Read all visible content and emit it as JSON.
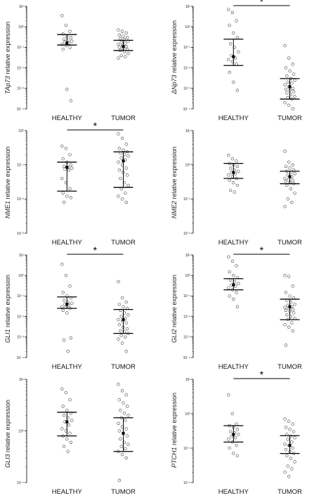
{
  "chart_data": [
    {
      "type": "scatter",
      "panel": "top-left",
      "ylabel_gene": "TAp73",
      "ylabel_rest": " relative expression",
      "yscale": "log",
      "ylim": [
        0.0001,
        10
      ],
      "yticks": [
        "10⁻⁴",
        "10⁻³",
        "10⁻²",
        "10⁻¹",
        "10⁰",
        "10¹"
      ],
      "categories": [
        "HEALTHY",
        "TUMOR"
      ],
      "significance": "",
      "groups": [
        {
          "name": "HEALTHY",
          "mean": 0.16,
          "err_low": 0.13,
          "err_high": 0.42,
          "points": [
            3.5,
            1.2,
            0.6,
            0.45,
            0.35,
            0.3,
            0.25,
            0.22,
            0.2,
            0.18,
            0.16,
            0.14,
            0.12,
            0.1,
            0.08,
            0.0009,
            0.00025
          ]
        },
        {
          "name": "TUMOR",
          "mean": 0.11,
          "err_low": 0.07,
          "err_high": 0.22,
          "points": [
            0.7,
            0.6,
            0.5,
            0.4,
            0.35,
            0.3,
            0.27,
            0.24,
            0.2,
            0.18,
            0.16,
            0.14,
            0.12,
            0.11,
            0.1,
            0.09,
            0.08,
            0.07,
            0.06,
            0.05,
            0.04,
            0.035,
            0.03
          ]
        }
      ]
    },
    {
      "type": "scatter",
      "panel": "top-right",
      "ylabel_gene": "ΔNp73",
      "ylabel_rest": " relative expression",
      "yscale": "log",
      "ylim": [
        0.0001,
        10
      ],
      "yticks": [
        "10⁻⁴",
        "10⁻³",
        "10⁻²",
        "10⁻¹",
        "10⁰",
        "10¹"
      ],
      "categories": [
        "HEALTHY",
        "TUMOR"
      ],
      "significance": "*",
      "groups": [
        {
          "name": "HEALTHY",
          "mean": 0.035,
          "err_low": 0.013,
          "err_high": 0.25,
          "points": [
            7,
            5,
            2,
            1.2,
            0.5,
            0.3,
            0.15,
            0.1,
            0.06,
            0.04,
            0.03,
            0.025,
            0.02,
            0.015,
            0.006,
            0.002,
            0.0008
          ]
        },
        {
          "name": "TUMOR",
          "mean": 0.0012,
          "err_low": 0.0003,
          "err_high": 0.003,
          "points": [
            0.12,
            0.03,
            0.015,
            0.01,
            0.007,
            0.005,
            0.004,
            0.003,
            0.0025,
            0.002,
            0.0018,
            0.0015,
            0.0012,
            0.001,
            0.0009,
            0.0008,
            0.0007,
            0.0006,
            0.0005,
            0.0004,
            0.00035,
            0.0003,
            0.0002,
            0.00015,
            0.0001
          ]
        }
      ]
    },
    {
      "type": "scatter",
      "panel": "row2-left",
      "ylabel_gene": "NME1",
      "ylabel_rest": " relative expression",
      "yscale": "log",
      "ylim": [
        0.001,
        1
      ],
      "yticks": [
        "10⁻³",
        "10⁻²",
        "10⁻¹",
        "10⁰"
      ],
      "categories": [
        "HEALTHY",
        "TUMOR"
      ],
      "significance": "*",
      "groups": [
        {
          "name": "HEALTHY",
          "mean": 0.085,
          "err_low": 0.017,
          "err_high": 0.12,
          "points": [
            0.35,
            0.3,
            0.2,
            0.15,
            0.12,
            0.1,
            0.09,
            0.085,
            0.08,
            0.075,
            0.07,
            0.04,
            0.03,
            0.02,
            0.015,
            0.012,
            0.011,
            0.008
          ]
        },
        {
          "name": "TUMOR",
          "mean": 0.13,
          "err_low": 0.022,
          "err_high": 0.24,
          "points": [
            0.8,
            0.6,
            0.4,
            0.3,
            0.27,
            0.24,
            0.22,
            0.2,
            0.18,
            0.16,
            0.14,
            0.12,
            0.1,
            0.08,
            0.07,
            0.06,
            0.05,
            0.04,
            0.03,
            0.025,
            0.02,
            0.015,
            0.012,
            0.01,
            0.008
          ]
        }
      ]
    },
    {
      "type": "scatter",
      "panel": "row2-right",
      "ylabel_gene": "NME2",
      "ylabel_rest": " relative expression",
      "yscale": "log",
      "ylim": [
        0.01,
        10
      ],
      "yticks": [
        "10⁻²",
        "10⁻¹",
        "10⁰",
        "10¹"
      ],
      "categories": [
        "HEALTHY",
        "TUMOR"
      ],
      "significance": "",
      "groups": [
        {
          "name": "HEALTHY",
          "mean": 0.6,
          "err_low": 0.4,
          "err_high": 1.1,
          "points": [
            1.9,
            1.5,
            1.3,
            1.1,
            1.0,
            0.9,
            0.8,
            0.7,
            0.65,
            0.6,
            0.55,
            0.5,
            0.45,
            0.4,
            0.35,
            0.3,
            0.25,
            0.18,
            0.16
          ]
        },
        {
          "name": "TUMOR",
          "mean": 0.45,
          "err_low": 0.28,
          "err_high": 0.65,
          "points": [
            2.5,
            1.2,
            1.0,
            0.9,
            0.8,
            0.7,
            0.65,
            0.6,
            0.55,
            0.5,
            0.45,
            0.4,
            0.38,
            0.35,
            0.33,
            0.3,
            0.28,
            0.25,
            0.2,
            0.15,
            0.1,
            0.08,
            0.06
          ]
        }
      ]
    },
    {
      "type": "scatter",
      "panel": "row3-left",
      "ylabel_gene": "GLI1",
      "ylabel_rest": " relative expression",
      "yscale": "log",
      "ylim": [
        0.0001,
        10
      ],
      "yticks": [
        "10⁻⁴",
        "10⁻³",
        "10⁻²",
        "10⁻¹",
        "10⁰",
        "10¹"
      ],
      "categories": [
        "HEALTHY",
        "TUMOR"
      ],
      "significance": "*",
      "groups": [
        {
          "name": "HEALTHY",
          "mean": 0.04,
          "err_low": 0.025,
          "err_high": 0.09,
          "points": [
            3.5,
            1.0,
            0.3,
            0.15,
            0.1,
            0.08,
            0.06,
            0.05,
            0.045,
            0.04,
            0.035,
            0.03,
            0.028,
            0.025,
            0.02,
            0.015,
            0.0009,
            0.0007,
            0.0002
          ]
        },
        {
          "name": "TUMOR",
          "mean": 0.007,
          "err_low": 0.0015,
          "err_high": 0.022,
          "points": [
            0.5,
            0.08,
            0.05,
            0.04,
            0.03,
            0.025,
            0.02,
            0.015,
            0.012,
            0.01,
            0.008,
            0.007,
            0.006,
            0.005,
            0.004,
            0.003,
            0.0025,
            0.002,
            0.0018,
            0.0015,
            0.0012,
            0.001,
            0.0008,
            0.0005,
            0.0002
          ]
        }
      ]
    },
    {
      "type": "scatter",
      "panel": "row3-right",
      "ylabel_gene": "GLI2",
      "ylabel_rest": " relative expression",
      "yscale": "log",
      "ylim": [
        0.0001,
        10
      ],
      "yticks": [
        "10⁻⁴",
        "10⁻³",
        "10⁻²",
        "10⁻¹",
        "10⁰",
        "10¹"
      ],
      "categories": [
        "HEALTHY",
        "TUMOR"
      ],
      "significance": "*",
      "groups": [
        {
          "name": "HEALTHY",
          "mean": 0.35,
          "err_low": 0.2,
          "err_high": 0.7,
          "points": [
            8,
            5,
            3,
            1.5,
            1.0,
            0.8,
            0.6,
            0.5,
            0.4,
            0.35,
            0.3,
            0.25,
            0.2,
            0.15,
            0.1,
            0.07,
            0.03
          ]
        },
        {
          "name": "TUMOR",
          "mean": 0.03,
          "err_low": 0.007,
          "err_high": 0.07,
          "points": [
            1.0,
            0.9,
            0.3,
            0.15,
            0.1,
            0.08,
            0.06,
            0.05,
            0.04,
            0.035,
            0.03,
            0.028,
            0.025,
            0.022,
            0.02,
            0.018,
            0.015,
            0.012,
            0.01,
            0.008,
            0.007,
            0.005,
            0.004,
            0.003,
            0.002,
            0.0004
          ]
        }
      ]
    },
    {
      "type": "scatter",
      "panel": "bottom-left",
      "ylabel_gene": "GLI3",
      "ylabel_rest": " relative expression",
      "yscale": "log",
      "ylim": [
        0.1,
        10
      ],
      "yticks": [
        "10⁻¹",
        "10⁰",
        "10¹"
      ],
      "categories": [
        "HEALTHY",
        "TUMOR"
      ],
      "significance": "",
      "groups": [
        {
          "name": "HEALTHY",
          "mean": 1.5,
          "err_low": 0.8,
          "err_high": 2.3,
          "points": [
            6.5,
            5.5,
            4,
            3,
            2.5,
            2.2,
            2.0,
            1.8,
            1.6,
            1.5,
            1.3,
            1.1,
            1.0,
            0.9,
            0.8,
            0.7,
            0.6,
            0.5,
            0.4
          ]
        },
        {
          "name": "TUMOR",
          "mean": 0.9,
          "err_low": 0.4,
          "err_high": 1.8,
          "points": [
            8,
            6,
            5,
            4,
            3.5,
            3,
            2.5,
            2.2,
            2.0,
            1.8,
            1.6,
            1.4,
            1.2,
            1.1,
            1.0,
            0.9,
            0.8,
            0.7,
            0.6,
            0.55,
            0.5,
            0.45,
            0.4,
            0.35,
            0.3,
            0.11
          ]
        }
      ]
    },
    {
      "type": "scatter",
      "panel": "bottom-right",
      "ylabel_gene": "PTCH1",
      "ylabel_rest": " relative expression",
      "yscale": "log",
      "ylim": [
        0.01,
        10
      ],
      "yticks": [
        "10⁻²",
        "10⁻¹",
        "10⁰",
        "10¹"
      ],
      "categories": [
        "HEALTHY",
        "TUMOR"
      ],
      "significance": "*",
      "groups": [
        {
          "name": "HEALTHY",
          "mean": 0.25,
          "err_low": 0.15,
          "err_high": 0.45,
          "points": [
            3.5,
            1.0,
            0.5,
            0.45,
            0.4,
            0.35,
            0.3,
            0.28,
            0.25,
            0.22,
            0.2,
            0.18,
            0.15,
            0.12,
            0.1,
            0.07,
            0.06
          ]
        },
        {
          "name": "TUMOR",
          "mean": 0.12,
          "err_low": 0.07,
          "err_high": 0.23,
          "points": [
            0.7,
            0.6,
            0.5,
            0.4,
            0.35,
            0.3,
            0.25,
            0.22,
            0.2,
            0.18,
            0.15,
            0.13,
            0.12,
            0.1,
            0.09,
            0.08,
            0.07,
            0.06,
            0.05,
            0.04,
            0.03,
            0.025,
            0.02,
            0.015
          ]
        }
      ]
    }
  ]
}
